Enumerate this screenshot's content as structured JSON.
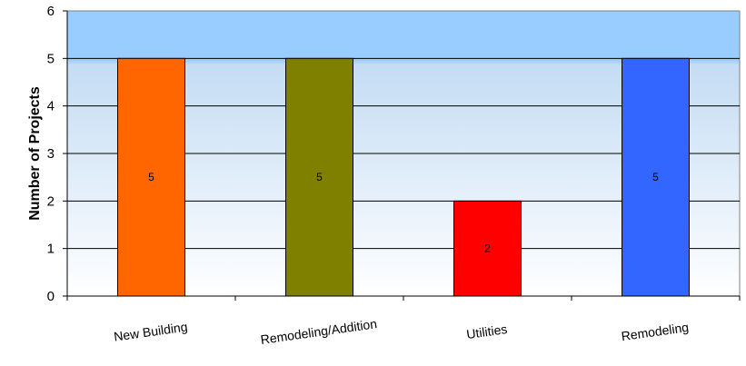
{
  "chart_data": {
    "type": "bar",
    "title": "",
    "xlabel": "",
    "ylabel": "Number of Projects",
    "categories": [
      "New Building",
      "Remodeling/Addition",
      "Utilities",
      "Remodeling"
    ],
    "values": [
      5,
      5,
      2,
      5
    ],
    "data_labels": [
      "5",
      "5",
      "2",
      "5"
    ],
    "bar_colors": [
      "#ff6600",
      "#808000",
      "#ff0000",
      "#3366ff"
    ],
    "ylim": [
      0,
      6
    ],
    "yticks": [
      0,
      1,
      2,
      3,
      4,
      5,
      6
    ],
    "grid": true,
    "legend": "none",
    "background_gradient": [
      "#99ccff",
      "#ffffff"
    ]
  }
}
